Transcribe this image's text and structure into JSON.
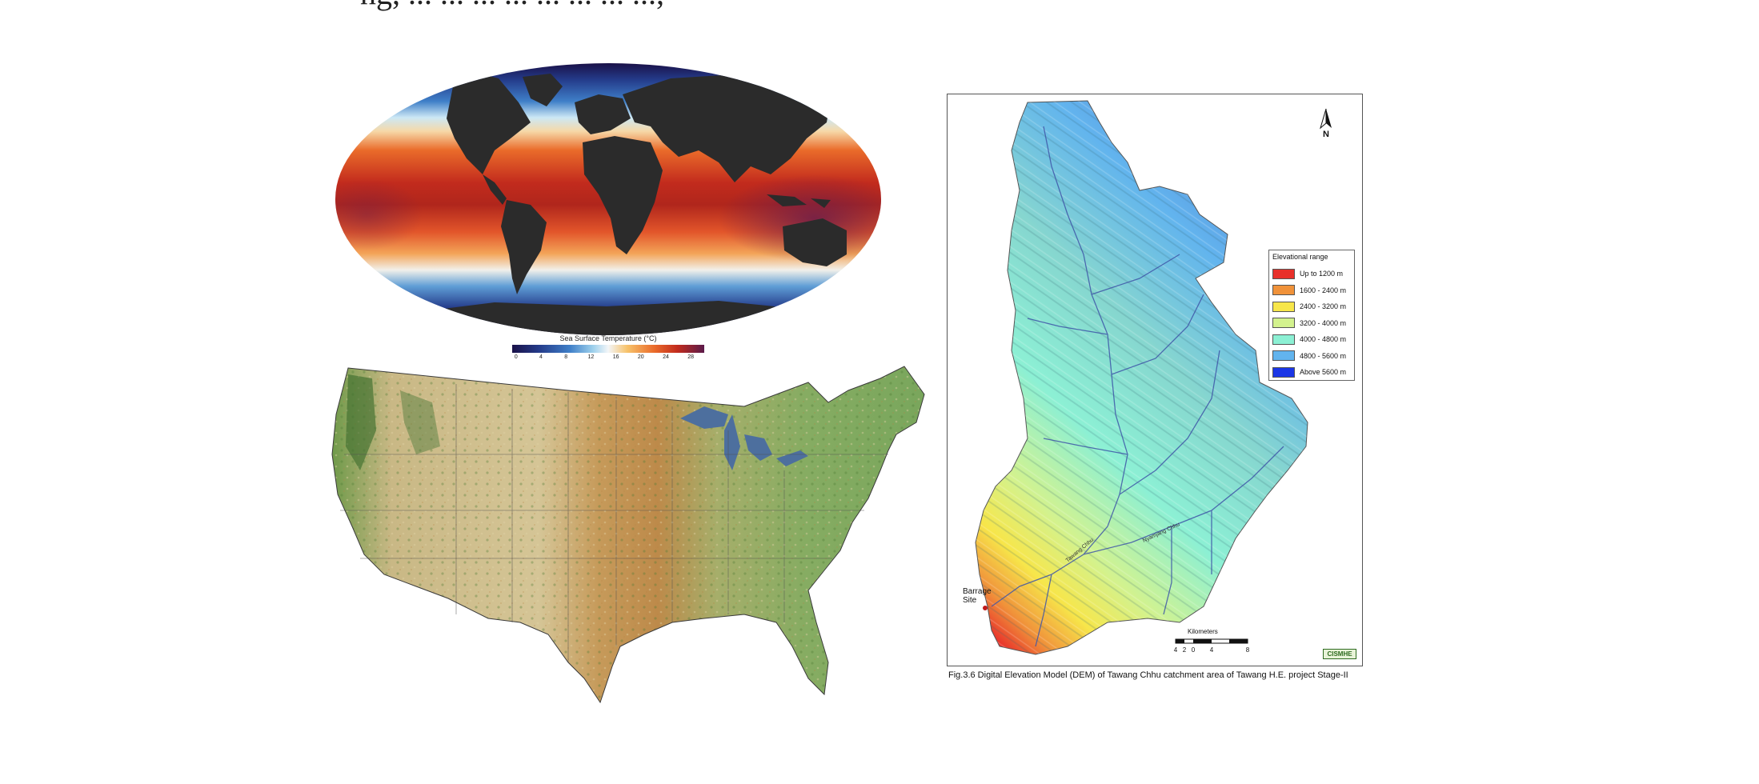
{
  "top_text": "ng, ... ... ... ... ... ... ... ...,",
  "sst": {
    "colorbar_title": "Sea Surface Temperature (°C)",
    "ticks": [
      "0",
      "4",
      "8",
      "12",
      "16",
      "20",
      "24",
      "28"
    ],
    "colors": [
      "#1a1148",
      "#243b8a",
      "#3f7fc8",
      "#9dd0ec",
      "#f3f6f8",
      "#f7c26a",
      "#ea6b2a",
      "#c22b1d",
      "#5a1a4a"
    ]
  },
  "dem": {
    "legend_title": "Elevational range",
    "legend": [
      {
        "label": "Up to 1200 m",
        "color": "#e8302a"
      },
      {
        "label": "1600 - 2400 m",
        "color": "#f0923a"
      },
      {
        "label": "2400 - 3200 m",
        "color": "#f7e64a"
      },
      {
        "label": "3200 - 4000 m",
        "color": "#d3f28e"
      },
      {
        "label": "4000 - 4800 m",
        "color": "#8cf0d4"
      },
      {
        "label": "4800 - 5600 m",
        "color": "#62b4ee"
      },
      {
        "label": "Above 5600 m",
        "color": "#1b36e6"
      }
    ],
    "north_label": "N",
    "barrage_label": "Barrage Site",
    "scale_title": "Kilometers",
    "scale_ticks": [
      "4",
      "2",
      "0",
      "4",
      "8"
    ],
    "logo_text": "CISMHE",
    "river_label_1": "Tawang Chhu",
    "river_label_2": "Nyamjang Chhu",
    "caption": "Fig.3.6 Digital Elevation Model (DEM) of Tawang Chhu catchment area of Tawang H.E. project Stage-II"
  }
}
